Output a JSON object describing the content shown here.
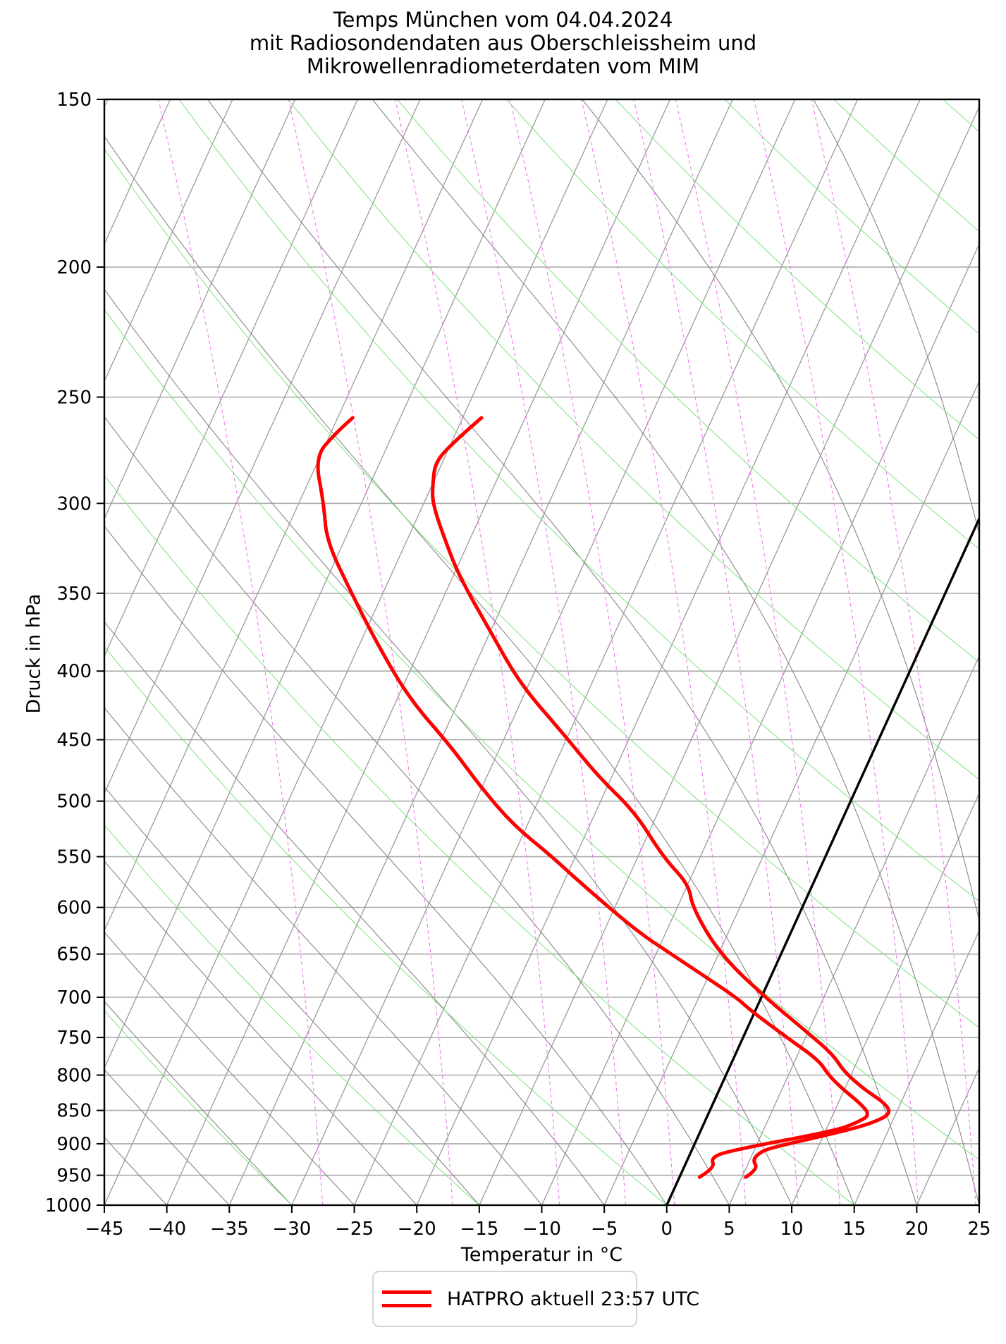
{
  "title": {
    "line1": "Temps München vom 04.04.2024",
    "line2": "mit Radiosondendaten aus Oberschleissheim und",
    "line3": "Mikrowellenradiometerdaten vom MIM"
  },
  "axes": {
    "x_label": "Temperatur in °C",
    "y_label": "Druck in hPa",
    "x_ticks": [
      -45,
      -40,
      -35,
      -30,
      -25,
      -20,
      -15,
      -10,
      -5,
      0,
      5,
      10,
      15,
      20,
      25
    ],
    "y_ticks": [
      150,
      200,
      250,
      300,
      350,
      400,
      450,
      500,
      550,
      600,
      650,
      700,
      750,
      800,
      850,
      900,
      950,
      1000
    ],
    "x_range_degC": [
      -45,
      25
    ],
    "pressure_range_hPa": [
      150,
      1000
    ]
  },
  "legend": {
    "label": "HATPRO aktuell 23:57 UTC"
  },
  "colors": {
    "profile": "#ff0000",
    "zero_isotherm": "#000000",
    "isobar": "#ababab",
    "isotherm": "#9a9a9a",
    "moist_adiabat": "#878787",
    "dry_adiabat": "#7be27b",
    "mixing_ratio": "#f07af0",
    "frame": "#000000"
  },
  "chart_data": {
    "type": "line",
    "diagram": "skew-T log-p",
    "title": "Temps München vom 04.04.2024 mit Radiosondendaten aus Oberschleissheim und Mikrowellenradiometerdaten vom MIM",
    "xlabel": "Temperatur in °C",
    "ylabel": "Druck in hPa",
    "xlim_degC": [
      -45,
      25
    ],
    "plim_hPa": [
      1000,
      150
    ],
    "grid": {
      "isobars_hPa": [
        200,
        250,
        300,
        350,
        400,
        450,
        500,
        550,
        600,
        650,
        700,
        750,
        800,
        850,
        900,
        950
      ],
      "isotherms_degC": [
        -85,
        -80,
        -75,
        -70,
        -65,
        -60,
        -55,
        -50,
        -45,
        -40,
        -35,
        -30,
        -25,
        -20,
        -15,
        -10,
        -5,
        0,
        5,
        10,
        15,
        20,
        25
      ],
      "zero_isotherm_degC": 0,
      "dry_adiabats_theta_degC": [
        -45,
        -30,
        -15,
        0,
        15,
        30,
        45,
        60,
        75,
        90,
        105,
        120,
        135,
        150,
        165
      ],
      "moist_adiabats_start_degC": [
        -45,
        -40,
        -35,
        -30,
        -25,
        -20,
        -15,
        -10,
        -5,
        0,
        5,
        10,
        15,
        20,
        25,
        30,
        35,
        40,
        45,
        50,
        55,
        60,
        65,
        70,
        75,
        80,
        85,
        90,
        95
      ],
      "mixing_ratios_g_kg": [
        0.4,
        1,
        2,
        3,
        4,
        6,
        8,
        10,
        15,
        20
      ]
    },
    "series": [
      {
        "name": "HATPRO aktuell 23:57 UTC (Temperatur)",
        "color": "#ff0000",
        "points_p_T": [
          [
            953,
            5.3
          ],
          [
            940,
            6.0
          ],
          [
            925,
            5.2
          ],
          [
            912,
            5.6
          ],
          [
            905,
            6.5
          ],
          [
            880,
            11.6
          ],
          [
            868,
            13.5
          ],
          [
            855,
            14.6
          ],
          [
            840,
            13.8
          ],
          [
            820,
            11.6
          ],
          [
            795,
            9.3
          ],
          [
            772,
            7.8
          ],
          [
            740,
            4.6
          ],
          [
            700,
            0.3
          ],
          [
            650,
            -4.9
          ],
          [
            600,
            -8.8
          ],
          [
            577,
            -9.9
          ],
          [
            550,
            -13.0
          ],
          [
            510,
            -16.8
          ],
          [
            480,
            -21.0
          ],
          [
            445,
            -25.5
          ],
          [
            409,
            -30.7
          ],
          [
            373,
            -35.1
          ],
          [
            340,
            -39.5
          ],
          [
            320,
            -41.9
          ],
          [
            300,
            -44.3
          ],
          [
            290,
            -45.0
          ],
          [
            279,
            -45.6
          ],
          [
            269,
            -44.7
          ],
          [
            259,
            -43.5
          ]
        ]
      },
      {
        "name": "HATPRO aktuell 23:57 UTC (Taupunkt)",
        "color": "#ff0000",
        "points_p_T": [
          [
            953,
            1.6
          ],
          [
            938,
            2.5
          ],
          [
            922,
            1.8
          ],
          [
            911,
            3.0
          ],
          [
            880,
            10.8
          ],
          [
            868,
            12.2
          ],
          [
            857,
            13.0
          ],
          [
            840,
            11.8
          ],
          [
            820,
            9.9
          ],
          [
            800,
            8.2
          ],
          [
            780,
            6.9
          ],
          [
            750,
            3.5
          ],
          [
            715,
            -0.5
          ],
          [
            700,
            -2.0
          ],
          [
            650,
            -8.8
          ],
          [
            624,
            -12.5
          ],
          [
            574,
            -18.8
          ],
          [
            549,
            -22.0
          ],
          [
            521,
            -26.1
          ],
          [
            489,
            -30.0
          ],
          [
            455,
            -34.0
          ],
          [
            419,
            -39.1
          ],
          [
            381,
            -43.7
          ],
          [
            350,
            -47.5
          ],
          [
            320,
            -51.4
          ],
          [
            300,
            -53.0
          ],
          [
            277,
            -55.4
          ],
          [
            266,
            -54.6
          ],
          [
            259,
            -53.8
          ]
        ]
      }
    ],
    "legend_position": "bottom center"
  }
}
